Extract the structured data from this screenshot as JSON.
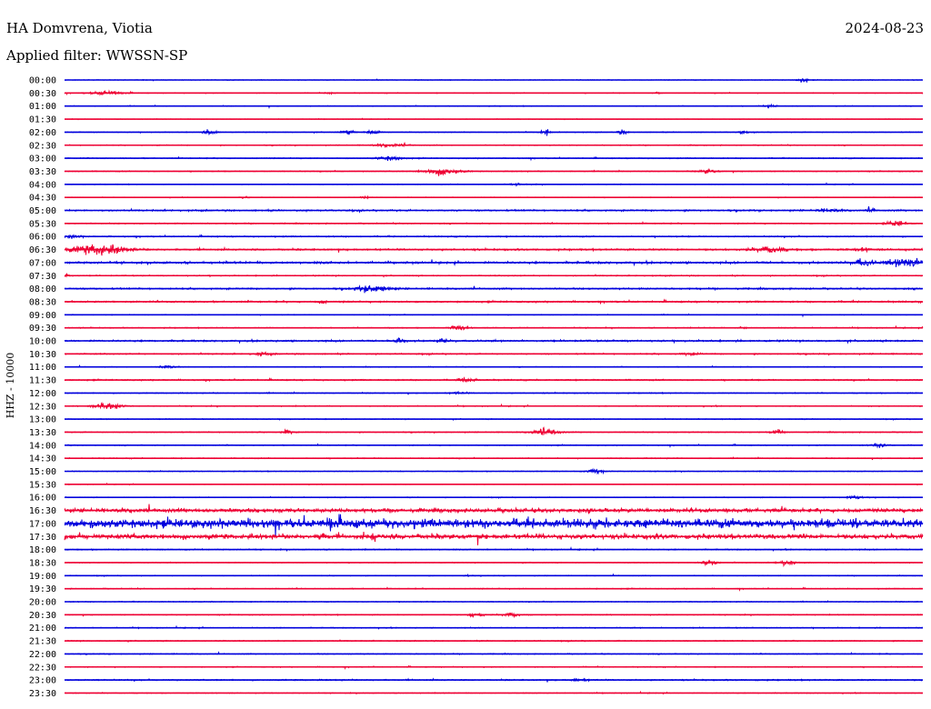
{
  "header": {
    "station": "HA Domvrena, Viotia",
    "date": "2024-08-23",
    "filter": "Applied filter: WWSSN-SP"
  },
  "chart_data": {
    "type": "line",
    "title": "HA Domvrena, Viotia",
    "subtitle": "Applied filter: WWSSN-SP",
    "date": "2024-08-23",
    "ylabel": "HHZ - 10000",
    "xlabel": "",
    "grid": false,
    "legend": "none",
    "colors": {
      "even_hour": "#0000dd",
      "half_hour": "#ee0033"
    },
    "time_labels": [
      "00:00",
      "00:30",
      "01:00",
      "01:30",
      "02:00",
      "02:30",
      "03:00",
      "03:30",
      "04:00",
      "04:30",
      "05:00",
      "05:30",
      "06:00",
      "06:30",
      "07:00",
      "07:30",
      "08:00",
      "08:30",
      "09:00",
      "09:30",
      "10:00",
      "10:30",
      "11:00",
      "11:30",
      "12:00",
      "12:30",
      "13:00",
      "13:30",
      "14:00",
      "14:30",
      "15:00",
      "15:30",
      "16:00",
      "16:30",
      "17:00",
      "17:30",
      "18:00",
      "18:30",
      "19:00",
      "19:30",
      "20:00",
      "20:30",
      "21:00",
      "21:30",
      "22:00",
      "22:30",
      "23:00",
      "23:30"
    ],
    "row_noise_level": [
      0.4,
      0.5,
      0.5,
      0.3,
      0.5,
      0.6,
      0.6,
      0.6,
      0.5,
      0.4,
      1.0,
      0.7,
      0.8,
      1.1,
      1.4,
      0.7,
      1.0,
      1.0,
      0.5,
      0.6,
      1.1,
      0.8,
      0.5,
      0.8,
      0.6,
      0.6,
      0.5,
      0.6,
      0.6,
      0.6,
      0.5,
      0.4,
      0.5,
      2.5,
      6.0,
      3.2,
      0.7,
      0.5,
      0.5,
      0.6,
      0.5,
      0.6,
      0.6,
      0.6,
      0.6,
      0.6,
      0.8,
      0.5
    ],
    "events": [
      [
        [
          0.86,
          4,
          0.006
        ]
      ],
      [
        [
          0.05,
          3,
          0.02
        ],
        [
          0.31,
          1.5,
          0.005
        ],
        [
          0.69,
          1.5,
          0.005
        ]
      ],
      [
        [
          0.82,
          2,
          0.008
        ]
      ],
      [],
      [
        [
          0.17,
          4,
          0.008
        ],
        [
          0.33,
          3,
          0.008
        ],
        [
          0.36,
          3,
          0.008
        ],
        [
          0.56,
          5,
          0.005
        ],
        [
          0.65,
          4,
          0.005
        ],
        [
          0.79,
          2,
          0.005
        ]
      ],
      [
        [
          0.38,
          2,
          0.02
        ]
      ],
      [
        [
          0.38,
          3,
          0.015
        ]
      ],
      [
        [
          0.44,
          5,
          0.02
        ],
        [
          0.75,
          3,
          0.01
        ]
      ],
      [
        [
          0.53,
          1.5,
          0.01
        ]
      ],
      [
        [
          0.21,
          2,
          0.005
        ],
        [
          0.35,
          2,
          0.005
        ]
      ],
      [
        [
          0.89,
          2,
          0.015
        ],
        [
          0.94,
          4,
          0.004
        ]
      ],
      [
        [
          0.97,
          4,
          0.01
        ]
      ],
      [
        [
          0.01,
          2,
          0.01
        ]
      ],
      [
        [
          0.04,
          8,
          0.03
        ],
        [
          0.82,
          4,
          0.02
        ],
        [
          0.93,
          2,
          0.01
        ]
      ],
      [
        [
          0.93,
          5,
          0.01
        ],
        [
          0.98,
          7,
          0.02
        ]
      ],
      [
        [
          0.0,
          4,
          0.006
        ]
      ],
      [
        [
          0.36,
          5,
          0.02
        ]
      ],
      [
        [
          0.3,
          3,
          0.005
        ]
      ],
      [],
      [
        [
          0.46,
          5,
          0.008
        ],
        [
          0.79,
          2,
          0.004
        ]
      ],
      [
        [
          0.39,
          4,
          0.006
        ],
        [
          0.44,
          3,
          0.006
        ]
      ],
      [
        [
          0.23,
          2,
          0.01
        ],
        [
          0.73,
          2,
          0.01
        ]
      ],
      [
        [
          0.12,
          2,
          0.01
        ]
      ],
      [
        [
          0.47,
          3,
          0.01
        ]
      ],
      [
        [
          0.46,
          1.5,
          0.01
        ]
      ],
      [
        [
          0.05,
          5,
          0.015
        ]
      ],
      [],
      [
        [
          0.26,
          4,
          0.006
        ],
        [
          0.56,
          5,
          0.015
        ],
        [
          0.83,
          4,
          0.006
        ]
      ],
      [
        [
          0.95,
          3,
          0.01
        ]
      ],
      [],
      [
        [
          0.62,
          3,
          0.01
        ]
      ],
      [],
      [
        [
          0.92,
          3,
          0.01
        ]
      ],
      [],
      [
        [
          0.31,
          12,
          0.003
        ],
        [
          0.92,
          10,
          0.003
        ]
      ],
      [
        [
          0.3,
          8,
          0.003
        ],
        [
          0.36,
          6,
          0.003
        ]
      ],
      [],
      [
        [
          0.75,
          4,
          0.01
        ],
        [
          0.84,
          4,
          0.01
        ]
      ],
      [
        [
          0.47,
          1.5,
          0.004
        ]
      ],
      [],
      [],
      [
        [
          0.48,
          3,
          0.01
        ],
        [
          0.52,
          3,
          0.01
        ]
      ],
      [],
      [],
      [],
      [],
      [
        [
          0.6,
          2,
          0.01
        ]
      ],
      []
    ]
  }
}
